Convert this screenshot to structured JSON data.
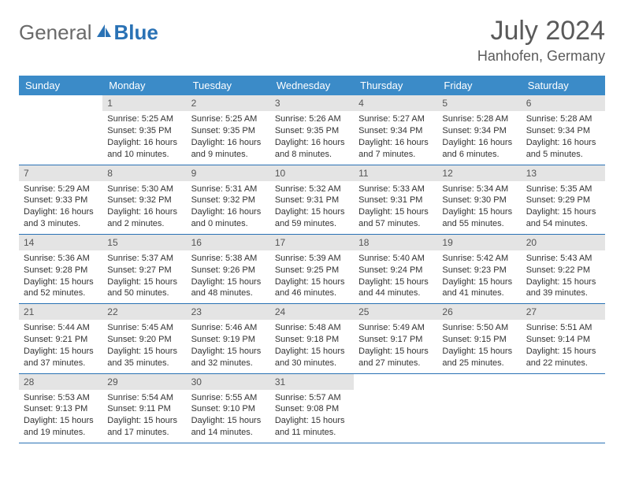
{
  "logo": {
    "part1": "General",
    "part2": "Blue"
  },
  "header": {
    "title": "July 2024",
    "location": "Hanhofen, Germany"
  },
  "weekdays": [
    "Sunday",
    "Monday",
    "Tuesday",
    "Wednesday",
    "Thursday",
    "Friday",
    "Saturday"
  ],
  "colors": {
    "header_bg": "#3b8bc8",
    "header_text": "#ffffff",
    "row_border": "#2a72b5",
    "daynum_bg": "#e4e4e4",
    "logo_gray": "#6a6a6a",
    "logo_blue": "#2a72b5",
    "background": "#ffffff"
  },
  "layout": {
    "type": "table",
    "columns": 7,
    "rows": 5,
    "font_family": "Arial",
    "title_fontsize_pt": 26,
    "location_fontsize_pt": 14,
    "weekday_fontsize_pt": 10,
    "cell_fontsize_pt": 8
  },
  "weeks": [
    [
      null,
      {
        "n": "1",
        "l1": "Sunrise: 5:25 AM",
        "l2": "Sunset: 9:35 PM",
        "l3": "Daylight: 16 hours",
        "l4": "and 10 minutes."
      },
      {
        "n": "2",
        "l1": "Sunrise: 5:25 AM",
        "l2": "Sunset: 9:35 PM",
        "l3": "Daylight: 16 hours",
        "l4": "and 9 minutes."
      },
      {
        "n": "3",
        "l1": "Sunrise: 5:26 AM",
        "l2": "Sunset: 9:35 PM",
        "l3": "Daylight: 16 hours",
        "l4": "and 8 minutes."
      },
      {
        "n": "4",
        "l1": "Sunrise: 5:27 AM",
        "l2": "Sunset: 9:34 PM",
        "l3": "Daylight: 16 hours",
        "l4": "and 7 minutes."
      },
      {
        "n": "5",
        "l1": "Sunrise: 5:28 AM",
        "l2": "Sunset: 9:34 PM",
        "l3": "Daylight: 16 hours",
        "l4": "and 6 minutes."
      },
      {
        "n": "6",
        "l1": "Sunrise: 5:28 AM",
        "l2": "Sunset: 9:34 PM",
        "l3": "Daylight: 16 hours",
        "l4": "and 5 minutes."
      }
    ],
    [
      {
        "n": "7",
        "l1": "Sunrise: 5:29 AM",
        "l2": "Sunset: 9:33 PM",
        "l3": "Daylight: 16 hours",
        "l4": "and 3 minutes."
      },
      {
        "n": "8",
        "l1": "Sunrise: 5:30 AM",
        "l2": "Sunset: 9:32 PM",
        "l3": "Daylight: 16 hours",
        "l4": "and 2 minutes."
      },
      {
        "n": "9",
        "l1": "Sunrise: 5:31 AM",
        "l2": "Sunset: 9:32 PM",
        "l3": "Daylight: 16 hours",
        "l4": "and 0 minutes."
      },
      {
        "n": "10",
        "l1": "Sunrise: 5:32 AM",
        "l2": "Sunset: 9:31 PM",
        "l3": "Daylight: 15 hours",
        "l4": "and 59 minutes."
      },
      {
        "n": "11",
        "l1": "Sunrise: 5:33 AM",
        "l2": "Sunset: 9:31 PM",
        "l3": "Daylight: 15 hours",
        "l4": "and 57 minutes."
      },
      {
        "n": "12",
        "l1": "Sunrise: 5:34 AM",
        "l2": "Sunset: 9:30 PM",
        "l3": "Daylight: 15 hours",
        "l4": "and 55 minutes."
      },
      {
        "n": "13",
        "l1": "Sunrise: 5:35 AM",
        "l2": "Sunset: 9:29 PM",
        "l3": "Daylight: 15 hours",
        "l4": "and 54 minutes."
      }
    ],
    [
      {
        "n": "14",
        "l1": "Sunrise: 5:36 AM",
        "l2": "Sunset: 9:28 PM",
        "l3": "Daylight: 15 hours",
        "l4": "and 52 minutes."
      },
      {
        "n": "15",
        "l1": "Sunrise: 5:37 AM",
        "l2": "Sunset: 9:27 PM",
        "l3": "Daylight: 15 hours",
        "l4": "and 50 minutes."
      },
      {
        "n": "16",
        "l1": "Sunrise: 5:38 AM",
        "l2": "Sunset: 9:26 PM",
        "l3": "Daylight: 15 hours",
        "l4": "and 48 minutes."
      },
      {
        "n": "17",
        "l1": "Sunrise: 5:39 AM",
        "l2": "Sunset: 9:25 PM",
        "l3": "Daylight: 15 hours",
        "l4": "and 46 minutes."
      },
      {
        "n": "18",
        "l1": "Sunrise: 5:40 AM",
        "l2": "Sunset: 9:24 PM",
        "l3": "Daylight: 15 hours",
        "l4": "and 44 minutes."
      },
      {
        "n": "19",
        "l1": "Sunrise: 5:42 AM",
        "l2": "Sunset: 9:23 PM",
        "l3": "Daylight: 15 hours",
        "l4": "and 41 minutes."
      },
      {
        "n": "20",
        "l1": "Sunrise: 5:43 AM",
        "l2": "Sunset: 9:22 PM",
        "l3": "Daylight: 15 hours",
        "l4": "and 39 minutes."
      }
    ],
    [
      {
        "n": "21",
        "l1": "Sunrise: 5:44 AM",
        "l2": "Sunset: 9:21 PM",
        "l3": "Daylight: 15 hours",
        "l4": "and 37 minutes."
      },
      {
        "n": "22",
        "l1": "Sunrise: 5:45 AM",
        "l2": "Sunset: 9:20 PM",
        "l3": "Daylight: 15 hours",
        "l4": "and 35 minutes."
      },
      {
        "n": "23",
        "l1": "Sunrise: 5:46 AM",
        "l2": "Sunset: 9:19 PM",
        "l3": "Daylight: 15 hours",
        "l4": "and 32 minutes."
      },
      {
        "n": "24",
        "l1": "Sunrise: 5:48 AM",
        "l2": "Sunset: 9:18 PM",
        "l3": "Daylight: 15 hours",
        "l4": "and 30 minutes."
      },
      {
        "n": "25",
        "l1": "Sunrise: 5:49 AM",
        "l2": "Sunset: 9:17 PM",
        "l3": "Daylight: 15 hours",
        "l4": "and 27 minutes."
      },
      {
        "n": "26",
        "l1": "Sunrise: 5:50 AM",
        "l2": "Sunset: 9:15 PM",
        "l3": "Daylight: 15 hours",
        "l4": "and 25 minutes."
      },
      {
        "n": "27",
        "l1": "Sunrise: 5:51 AM",
        "l2": "Sunset: 9:14 PM",
        "l3": "Daylight: 15 hours",
        "l4": "and 22 minutes."
      }
    ],
    [
      {
        "n": "28",
        "l1": "Sunrise: 5:53 AM",
        "l2": "Sunset: 9:13 PM",
        "l3": "Daylight: 15 hours",
        "l4": "and 19 minutes."
      },
      {
        "n": "29",
        "l1": "Sunrise: 5:54 AM",
        "l2": "Sunset: 9:11 PM",
        "l3": "Daylight: 15 hours",
        "l4": "and 17 minutes."
      },
      {
        "n": "30",
        "l1": "Sunrise: 5:55 AM",
        "l2": "Sunset: 9:10 PM",
        "l3": "Daylight: 15 hours",
        "l4": "and 14 minutes."
      },
      {
        "n": "31",
        "l1": "Sunrise: 5:57 AM",
        "l2": "Sunset: 9:08 PM",
        "l3": "Daylight: 15 hours",
        "l4": "and 11 minutes."
      },
      null,
      null,
      null
    ]
  ]
}
